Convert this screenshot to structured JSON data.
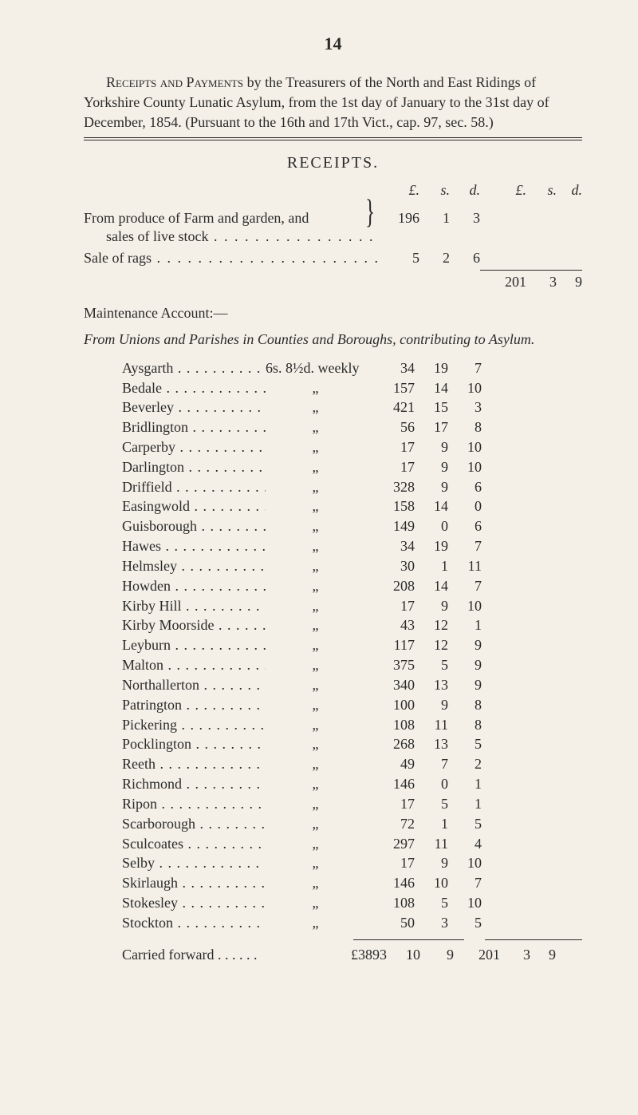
{
  "page_number": "14",
  "intro": {
    "lead_smallcaps": "Receipts and Payments",
    "rest": " by the Treasurers of the North and East Ridings of Yorkshire County Lunatic Asylum, from the 1st day of January to the 31st day of December, 1854.   (Pursuant to the 16th and 17th Vict., cap. 97, sec. 58.)"
  },
  "receipts_title": "RECEIPTS.",
  "money_cols": {
    "l1": "£.",
    "s1": "s.",
    "d1": "d.",
    "l2": "£.",
    "s2": "s.",
    "d2": "d."
  },
  "farm_line1": "From produce of Farm and garden, and",
  "farm_line2": "sales of live stock",
  "farm_amount": {
    "l": "196",
    "s": "1",
    "d": "3"
  },
  "rags_label": "Sale of rags",
  "rags_amount": {
    "l": "5",
    "s": "2",
    "d": "6"
  },
  "subtotal": {
    "l": "201",
    "s": "3",
    "d": "9"
  },
  "maintenance": "Maintenance Account:—",
  "contrib_italic": "From Unions and Parishes in Counties and Boroughs, contributing to Asylum.",
  "rate_first": "6s. 8½d. weekly",
  "ditto": "„",
  "rows": [
    {
      "name": "Aysgarth",
      "l": "34",
      "s": "19",
      "d": "7"
    },
    {
      "name": "Bedale",
      "l": "157",
      "s": "14",
      "d": "10"
    },
    {
      "name": "Beverley",
      "l": "421",
      "s": "15",
      "d": "3"
    },
    {
      "name": "Bridlington",
      "l": "56",
      "s": "17",
      "d": "8"
    },
    {
      "name": "Carperby",
      "l": "17",
      "s": "9",
      "d": "10"
    },
    {
      "name": "Darlington",
      "l": "17",
      "s": "9",
      "d": "10"
    },
    {
      "name": "Driffield",
      "l": "328",
      "s": "9",
      "d": "6"
    },
    {
      "name": "Easingwold",
      "l": "158",
      "s": "14",
      "d": "0"
    },
    {
      "name": "Guisborough",
      "l": "149",
      "s": "0",
      "d": "6"
    },
    {
      "name": "Hawes",
      "l": "34",
      "s": "19",
      "d": "7"
    },
    {
      "name": "Helmsley",
      "l": "30",
      "s": "1",
      "d": "11"
    },
    {
      "name": "Howden",
      "l": "208",
      "s": "14",
      "d": "7"
    },
    {
      "name": "Kirby Hill",
      "l": "17",
      "s": "9",
      "d": "10"
    },
    {
      "name": "Kirby Moorside",
      "l": "43",
      "s": "12",
      "d": "1"
    },
    {
      "name": "Leyburn",
      "l": "117",
      "s": "12",
      "d": "9"
    },
    {
      "name": "Malton",
      "l": "375",
      "s": "5",
      "d": "9"
    },
    {
      "name": "Northallerton",
      "l": "340",
      "s": "13",
      "d": "9"
    },
    {
      "name": "Patrington",
      "l": "100",
      "s": "9",
      "d": "8"
    },
    {
      "name": "Pickering",
      "l": "108",
      "s": "11",
      "d": "8"
    },
    {
      "name": "Pocklington",
      "l": "268",
      "s": "13",
      "d": "5"
    },
    {
      "name": "Reeth",
      "l": "49",
      "s": "7",
      "d": "2"
    },
    {
      "name": "Richmond",
      "l": "146",
      "s": "0",
      "d": "1"
    },
    {
      "name": "Ripon",
      "l": "17",
      "s": "5",
      "d": "1"
    },
    {
      "name": "Scarborough",
      "l": "72",
      "s": "1",
      "d": "5"
    },
    {
      "name": "Sculcoates",
      "l": "297",
      "s": "11",
      "d": "4"
    },
    {
      "name": "Selby",
      "l": "17",
      "s": "9",
      "d": "10"
    },
    {
      "name": "Skirlaugh",
      "l": "146",
      "s": "10",
      "d": "7"
    },
    {
      "name": "Stokesley",
      "l": "108",
      "s": "5",
      "d": "10"
    },
    {
      "name": "Stockton",
      "l": "50",
      "s": "3",
      "d": "5"
    }
  ],
  "carry": {
    "label": "Carried forward . . . . . .",
    "total_l": "£3893",
    "total_s": "10",
    "total_d": "9",
    "r_l": "201",
    "r_s": "3",
    "r_d": "9"
  }
}
